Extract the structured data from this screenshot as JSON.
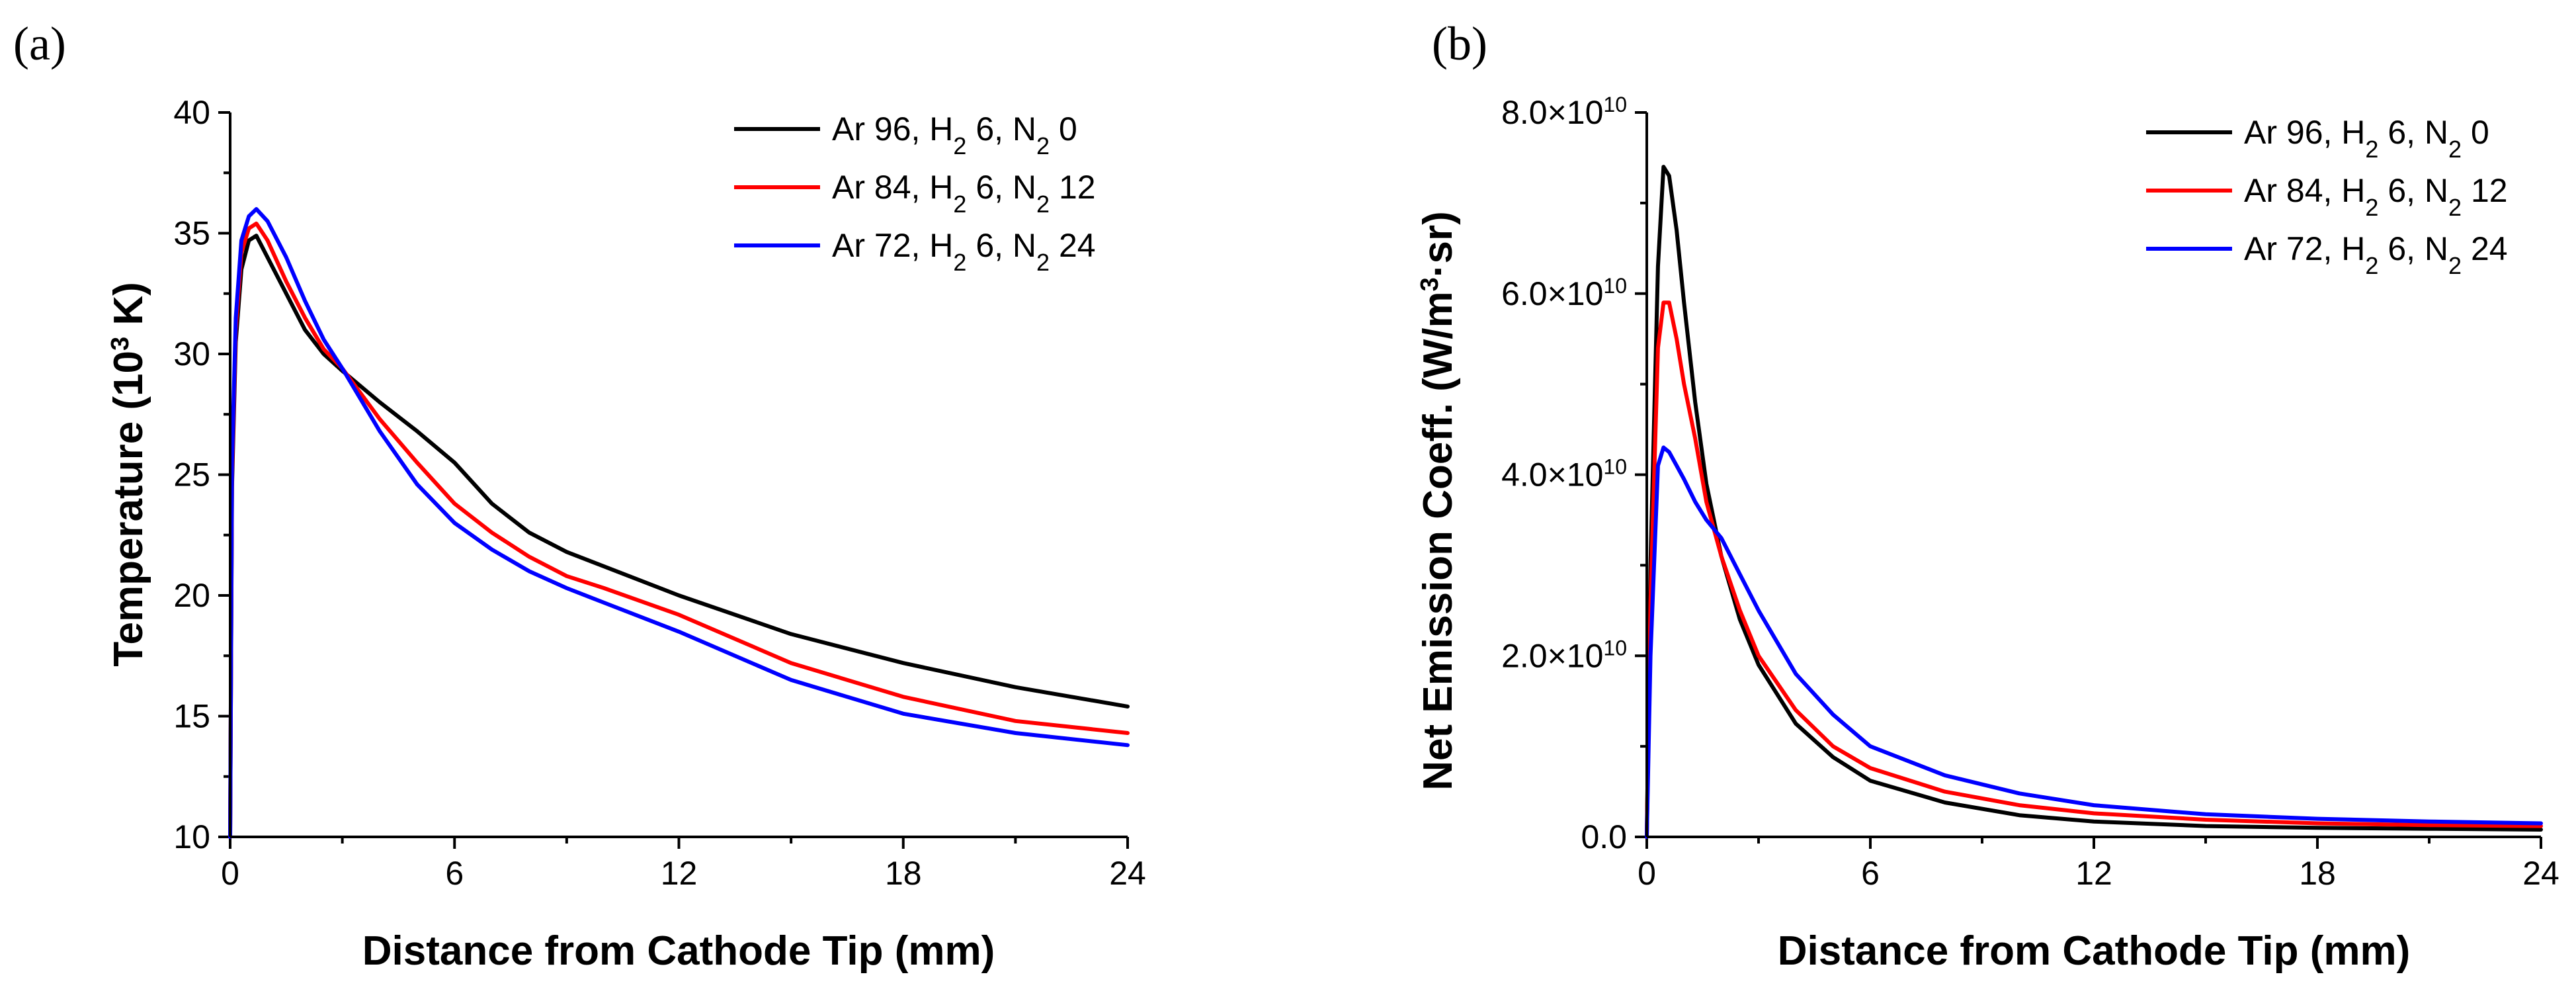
{
  "chart_data": [
    {
      "id": "a",
      "type": "line",
      "panel_label": "(a)",
      "xlabel": "Distance from Cathode Tip (mm)",
      "ylabel_parts": [
        "Temperature (10",
        "3",
        " K)"
      ],
      "xlim": [
        0,
        24
      ],
      "ylim": [
        10,
        40
      ],
      "xticks": [
        0,
        6,
        12,
        18,
        24
      ],
      "yticks": [
        10,
        15,
        20,
        25,
        30,
        35,
        40
      ],
      "xtick_labels": [
        "0",
        "6",
        "12",
        "18",
        "24"
      ],
      "ytick_labels": [
        "10",
        "15",
        "20",
        "25",
        "30",
        "35",
        "40"
      ],
      "legend_position": "top-right",
      "series": [
        {
          "name": "Ar 96, H2 6, N2 0",
          "label_parts": [
            "Ar 96, H",
            "2",
            " 6, N",
            "2",
            " 0"
          ],
          "color": "#000000",
          "x": [
            0,
            0.05,
            0.15,
            0.3,
            0.5,
            0.7,
            1.0,
            1.5,
            2.0,
            2.5,
            3.0,
            4.0,
            5.0,
            6.0,
            7.0,
            8.0,
            9.0,
            10.0,
            12.0,
            15.0,
            18.0,
            21.0,
            24.0
          ],
          "y": [
            10,
            24.5,
            30.5,
            33.5,
            34.7,
            34.9,
            34.0,
            32.5,
            31.0,
            30.0,
            29.3,
            28.0,
            26.8,
            25.5,
            23.8,
            22.6,
            21.8,
            21.2,
            20.0,
            18.4,
            17.2,
            16.2,
            15.4
          ]
        },
        {
          "name": "Ar 84, H2 6, N2 12",
          "label_parts": [
            "Ar 84, H",
            "2",
            " 6, N",
            "2",
            " 12"
          ],
          "color": "#ff0000",
          "x": [
            0,
            0.05,
            0.15,
            0.3,
            0.5,
            0.7,
            1.0,
            1.5,
            2.0,
            2.5,
            3.0,
            4.0,
            5.0,
            6.0,
            7.0,
            8.0,
            9.0,
            10.0,
            12.0,
            15.0,
            18.0,
            21.0,
            24.0
          ],
          "y": [
            10,
            25.0,
            31.0,
            34.2,
            35.2,
            35.4,
            34.7,
            33.0,
            31.5,
            30.2,
            29.4,
            27.3,
            25.5,
            23.8,
            22.6,
            21.6,
            20.8,
            20.3,
            19.2,
            17.2,
            15.8,
            14.8,
            14.3
          ]
        },
        {
          "name": "Ar 72, H2 6, N2 24",
          "label_parts": [
            "Ar 72, H",
            "2",
            " 6, N",
            "2",
            " 24"
          ],
          "color": "#0000ff",
          "x": [
            0,
            0.05,
            0.15,
            0.3,
            0.5,
            0.7,
            1.0,
            1.5,
            2.0,
            2.5,
            3.0,
            4.0,
            5.0,
            6.0,
            7.0,
            8.0,
            9.0,
            10.0,
            12.0,
            15.0,
            18.0,
            21.0,
            24.0
          ],
          "y": [
            10,
            25.5,
            31.5,
            34.7,
            35.7,
            36.0,
            35.5,
            34.0,
            32.2,
            30.6,
            29.4,
            26.8,
            24.6,
            23.0,
            21.9,
            21.0,
            20.3,
            19.7,
            18.5,
            16.5,
            15.1,
            14.3,
            13.8
          ]
        }
      ]
    },
    {
      "id": "b",
      "type": "line",
      "panel_label": "(b)",
      "xlabel": "Distance from Cathode Tip (mm)",
      "ylabel_parts": [
        "Net Emission Coeff. (W/m",
        "3",
        "·sr)"
      ],
      "xlim": [
        0,
        24
      ],
      "ylim": [
        0,
        80000000000.0
      ],
      "xticks": [
        0,
        6,
        12,
        18,
        24
      ],
      "yticks": [
        0,
        20000000000.0,
        40000000000.0,
        60000000000.0,
        80000000000.0
      ],
      "xtick_labels": [
        "0",
        "6",
        "12",
        "18",
        "24"
      ],
      "ytick_labels": [
        "0.0",
        "2.0×10",
        "4.0×10",
        "6.0×10",
        "8.0×10"
      ],
      "ytick_exponents": [
        "",
        "10",
        "10",
        "10",
        "10"
      ],
      "legend_position": "top-right",
      "series": [
        {
          "name": "Ar 96, H2 6, N2 0",
          "label_parts": [
            "Ar 96, H",
            "2",
            " 6, N",
            "2",
            " 0"
          ],
          "color": "#000000",
          "x": [
            0,
            0.1,
            0.3,
            0.45,
            0.6,
            0.8,
            1.0,
            1.3,
            1.6,
            2.0,
            2.5,
            3.0,
            4.0,
            5.0,
            6.0,
            8.0,
            10.0,
            12.0,
            15.0,
            18.0,
            21.0,
            24.0
          ],
          "y": [
            0,
            30000000000.0,
            63000000000.0,
            74000000000.0,
            73000000000.0,
            67000000000.0,
            59000000000.0,
            48000000000.0,
            39000000000.0,
            31000000000.0,
            24000000000.0,
            19000000000.0,
            12500000000.0,
            8800000000.0,
            6200000000.0,
            3800000000.0,
            2400000000.0,
            1700000000.0,
            1200000000.0,
            1000000000.0,
            900000000.0,
            800000000.0
          ]
        },
        {
          "name": "Ar 84, H2 6, N2 12",
          "label_parts": [
            "Ar 84, H",
            "2",
            " 6, N",
            "2",
            " 12"
          ],
          "color": "#ff0000",
          "x": [
            0,
            0.1,
            0.3,
            0.45,
            0.6,
            0.8,
            1.0,
            1.3,
            1.6,
            2.0,
            2.5,
            3.0,
            4.0,
            5.0,
            6.0,
            8.0,
            10.0,
            12.0,
            15.0,
            18.0,
            21.0,
            24.0
          ],
          "y": [
            0,
            26000000000.0,
            54000000000.0,
            59000000000.0,
            59000000000.0,
            55000000000.0,
            50000000000.0,
            44000000000.0,
            37000000000.0,
            31000000000.0,
            25000000000.0,
            20000000000.0,
            14000000000.0,
            10000000000.0,
            7600000000.0,
            5000000000.0,
            3500000000.0,
            2600000000.0,
            1900000000.0,
            1500000000.0,
            1300000000.0,
            1200000000.0
          ]
        },
        {
          "name": "Ar 72, H2 6, N2 24",
          "label_parts": [
            "Ar 72, H",
            "2",
            " 6, N",
            "2",
            " 24"
          ],
          "color": "#0000ff",
          "x": [
            0,
            0.1,
            0.3,
            0.45,
            0.6,
            0.8,
            1.0,
            1.3,
            1.6,
            2.0,
            2.5,
            3.0,
            4.0,
            5.0,
            6.0,
            8.0,
            10.0,
            12.0,
            15.0,
            18.0,
            21.0,
            24.0
          ],
          "y": [
            0,
            20000000000.0,
            41000000000.0,
            43000000000.0,
            42500000000.0,
            41000000000.0,
            39500000000.0,
            37000000000.0,
            35000000000.0,
            33000000000.0,
            29000000000.0,
            25000000000.0,
            18000000000.0,
            13500000000.0,
            10000000000.0,
            6800000000.0,
            4800000000.0,
            3500000000.0,
            2500000000.0,
            2000000000.0,
            1700000000.0,
            1500000000.0
          ]
        }
      ]
    }
  ]
}
